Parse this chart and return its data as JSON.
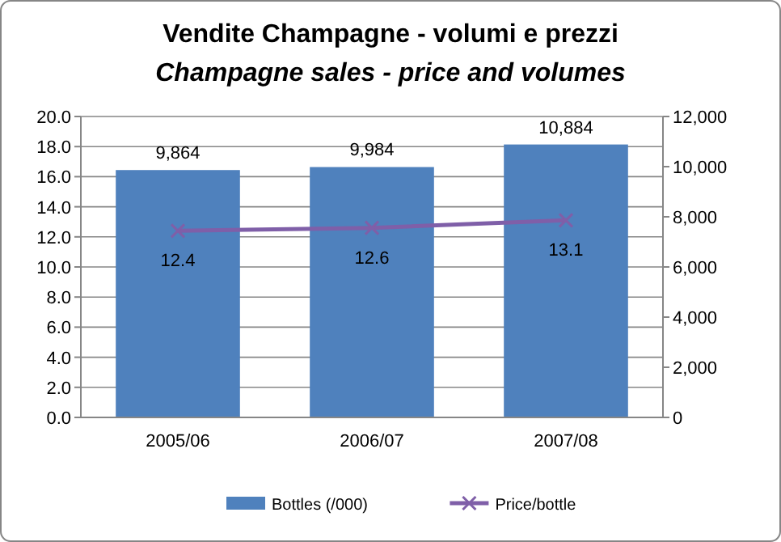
{
  "chart_data": {
    "type": "bar",
    "title": "Vendite Champagne - volumi e prezzi",
    "subtitle": "Champagne sales - price and volumes",
    "categories": [
      "2005/06",
      "2006/07",
      "2007/08"
    ],
    "series": [
      {
        "name": "Bottles (/000)",
        "axis": "y2",
        "color": "#4f81bd",
        "values": [
          9864,
          9984,
          10884
        ],
        "value_labels": [
          "9,864",
          "9,984",
          "10,884"
        ]
      },
      {
        "name": "Price/bottle",
        "type": "line",
        "axis": "y",
        "color": "#7f5fa8",
        "marker": "cross",
        "values": [
          12.4,
          12.6,
          13.1
        ],
        "value_labels": [
          "12.4",
          "12.6",
          "13.1"
        ]
      }
    ],
    "ylim": [
      0,
      20
    ],
    "yticks": [
      {
        "value": 0,
        "label": "0.0"
      },
      {
        "value": 2,
        "label": "2.0"
      },
      {
        "value": 4,
        "label": "4.0"
      },
      {
        "value": 6,
        "label": "6.0"
      },
      {
        "value": 8,
        "label": "8.0"
      },
      {
        "value": 10,
        "label": "10.0"
      },
      {
        "value": 12,
        "label": "12.0"
      },
      {
        "value": 14,
        "label": "14.0"
      },
      {
        "value": 16,
        "label": "16.0"
      },
      {
        "value": 18,
        "label": "18.0"
      },
      {
        "value": 20,
        "label": "20.0"
      }
    ],
    "y2lim": [
      0,
      12000
    ],
    "y2ticks": [
      0,
      {
        "value": 2000,
        "label": "2,000"
      },
      {
        "value": 4000,
        "label": "4,000"
      },
      {
        "value": 6000,
        "label": "6,000"
      },
      {
        "value": 8000,
        "label": "8,000"
      },
      {
        "value": 10000,
        "label": "10,000"
      },
      {
        "value": 12000,
        "label": "12,000"
      }
    ],
    "grid": "y",
    "legend": "bottom"
  }
}
